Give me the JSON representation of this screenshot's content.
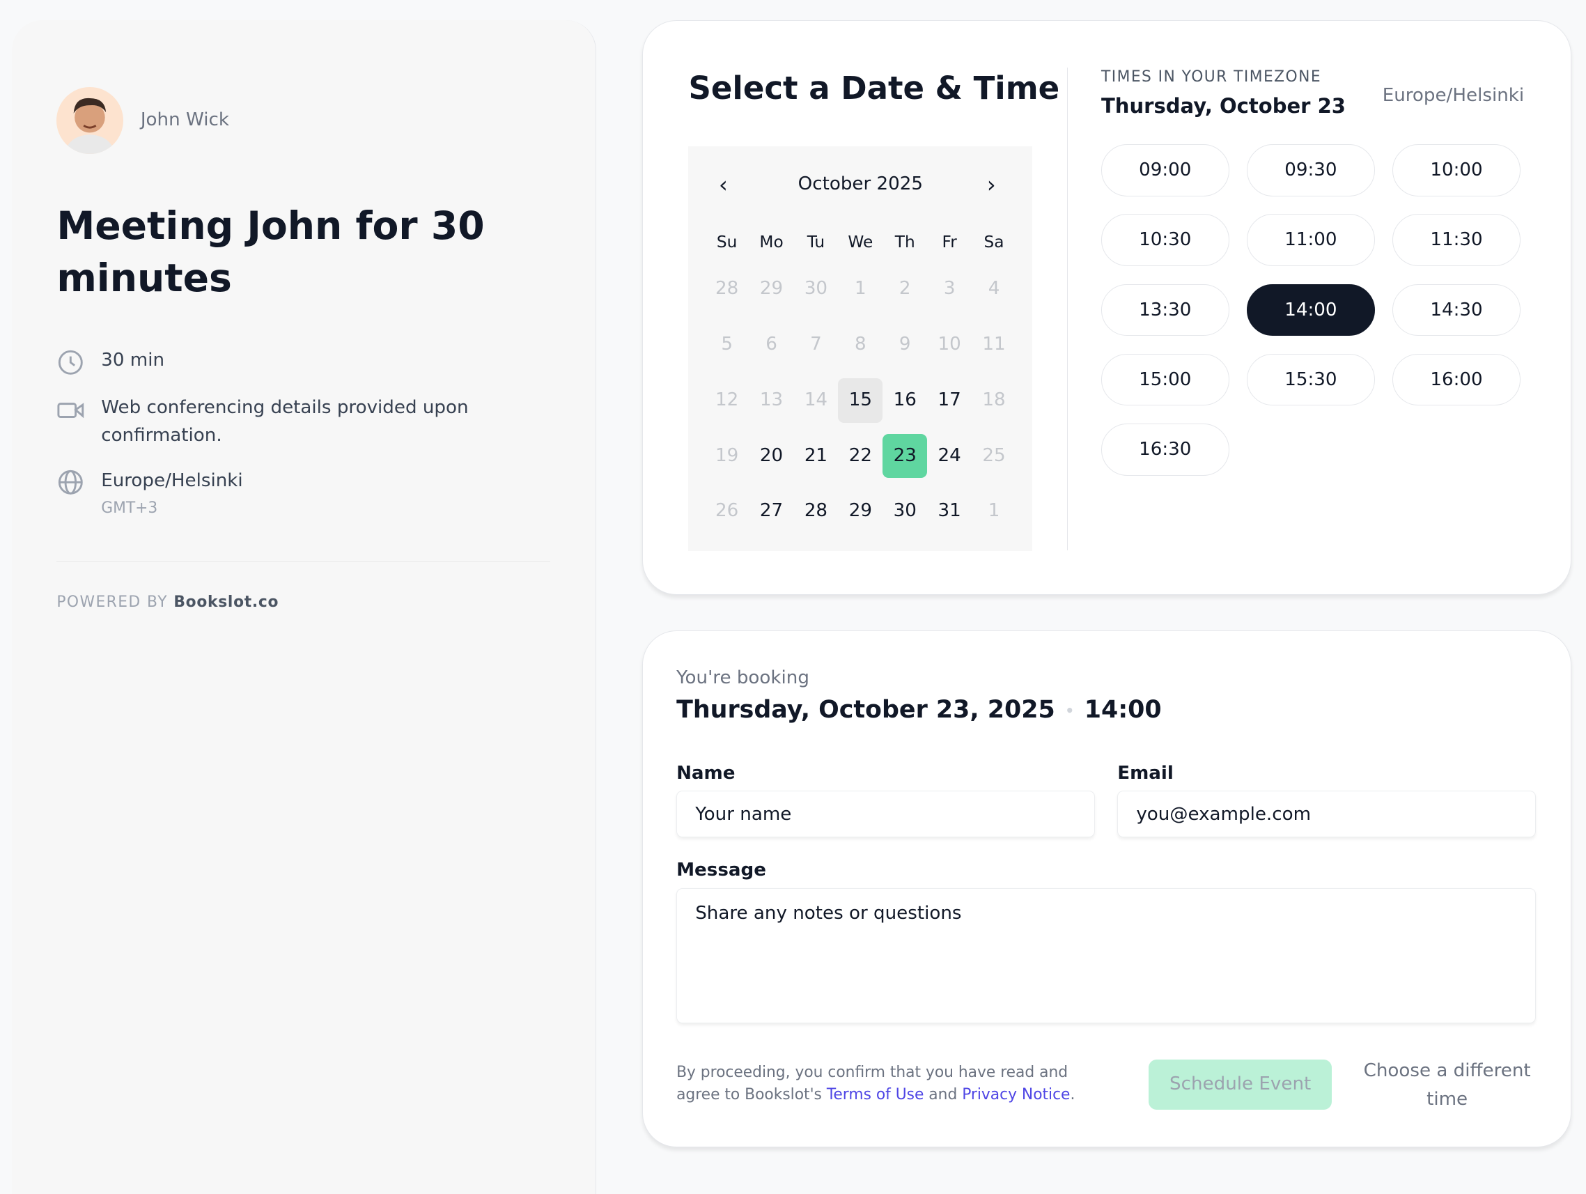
{
  "host": {
    "name": "John Wick"
  },
  "event": {
    "title": "Meeting John for 30 minutes",
    "duration": "30 min",
    "location": "Web conferencing details provided upon confirmation.",
    "timezone": "Europe/Helsinki",
    "timezone_offset": "GMT+3"
  },
  "footer": {
    "powered_by": "POWERED BY",
    "brand": "Bookslot.co"
  },
  "picker": {
    "title": "Select a Date & Time",
    "month": "October 2025",
    "prev": "‹",
    "next": "›",
    "weekdays": [
      "Su",
      "Mo",
      "Tu",
      "We",
      "Th",
      "Fr",
      "Sa"
    ],
    "weeks": [
      [
        "28",
        "29",
        "30",
        "1",
        "2",
        "3",
        "4"
      ],
      [
        "5",
        "6",
        "7",
        "8",
        "9",
        "10",
        "11"
      ],
      [
        "12",
        "13",
        "14",
        "15",
        "16",
        "17",
        "18"
      ],
      [
        "19",
        "20",
        "21",
        "22",
        "23",
        "24",
        "25"
      ],
      [
        "26",
        "27",
        "28",
        "29",
        "30",
        "31",
        "1"
      ]
    ],
    "available": [
      "15",
      "16",
      "17",
      "20",
      "21",
      "22",
      "23",
      "24",
      "27",
      "28",
      "29",
      "30",
      "31"
    ],
    "today": "15",
    "selected": "23"
  },
  "times": {
    "label": "TIMES IN YOUR TIMEZONE",
    "date": "Thursday, October 23",
    "timezone": "Europe/Helsinki",
    "slots": [
      "09:00",
      "09:30",
      "10:00",
      "10:30",
      "11:00",
      "11:30",
      "13:30",
      "14:00",
      "14:30",
      "15:00",
      "15:30",
      "16:00",
      "16:30"
    ],
    "selected": "14:00"
  },
  "booking": {
    "label": "You're booking",
    "date": "Thursday, October 23, 2025",
    "separator": "•",
    "time": "14:00",
    "name_label": "Name",
    "name_placeholder": "Your name",
    "email_label": "Email",
    "email_placeholder": "you@example.com",
    "message_label": "Message",
    "message_placeholder": "Share any notes or questions",
    "legal_1": "By proceeding, you confirm that you have read and agree to Bookslot's ",
    "terms": "Terms of Use",
    "legal_and": " and ",
    "privacy": "Privacy Notice",
    "legal_end": ".",
    "schedule": "Schedule Event",
    "different": "Choose a different time"
  },
  "colors": {
    "accent": "#5fd6a0",
    "selected_slot": "#111827",
    "link": "#4f46e5",
    "schedule_disabled": "#bbf1d7"
  }
}
